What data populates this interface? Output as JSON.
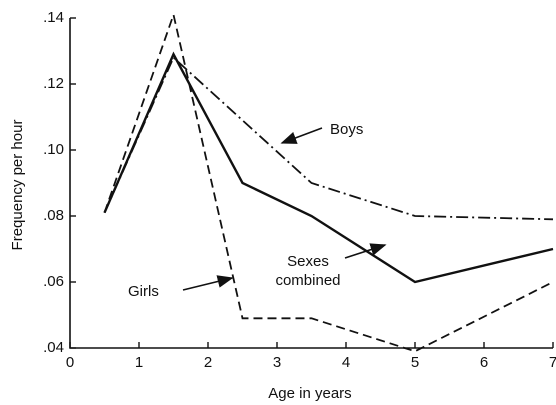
{
  "chart_data": {
    "type": "line",
    "x_label": "Age in years",
    "y_label": "Frequency per hour",
    "x": [
      0.5,
      1.5,
      2.5,
      3.5,
      5,
      7
    ],
    "series": [
      {
        "name": "Boys",
        "color": "#111111",
        "dash": "dashdot",
        "values": [
          0.081,
          0.128,
          0.109,
          0.09,
          0.08,
          0.079
        ]
      },
      {
        "name": "Sexes combined",
        "color": "#111111",
        "dash": "solid",
        "values": [
          0.081,
          0.129,
          0.09,
          0.08,
          0.06,
          0.07
        ]
      },
      {
        "name": "Girls",
        "color": "#111111",
        "dash": "dashed",
        "values": [
          0.081,
          0.141,
          0.049,
          0.049,
          0.039,
          0.06
        ]
      }
    ],
    "xlim": [
      0,
      7
    ],
    "xticks": [
      0,
      1,
      2,
      3,
      4,
      5,
      6,
      7
    ],
    "ylim": [
      0.04,
      0.14
    ],
    "yticks": [
      {
        "value": 0.04,
        "label": ".04"
      },
      {
        "value": 0.06,
        "label": ".06"
      },
      {
        "value": 0.08,
        "label": ".08"
      },
      {
        "value": 0.1,
        "label": ".10"
      },
      {
        "value": 0.12,
        "label": ".12"
      },
      {
        "value": 0.14,
        "label": ".14"
      }
    ],
    "grid": false
  }
}
